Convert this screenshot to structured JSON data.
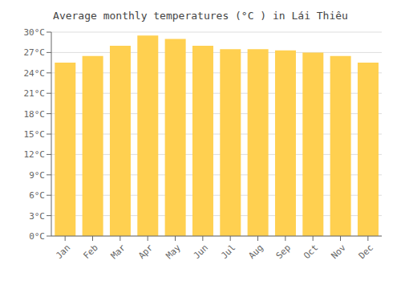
{
  "chart_data": {
    "type": "bar",
    "title": "Average monthly temperatures (°C ) in Lái Thiêu",
    "categories": [
      "Jan",
      "Feb",
      "Mar",
      "Apr",
      "May",
      "Jun",
      "Jul",
      "Aug",
      "Sep",
      "Oct",
      "Nov",
      "Dec"
    ],
    "values": [
      25.5,
      26.5,
      28.0,
      29.5,
      29.0,
      28.0,
      27.5,
      27.5,
      27.3,
      27.0,
      26.5,
      25.5
    ],
    "color": "#FFD050",
    "ylim": [
      0,
      30
    ],
    "yticks": [
      {
        "value": 0,
        "label": "0°C"
      },
      {
        "value": 3,
        "label": "3°C"
      },
      {
        "value": 6,
        "label": "6°C"
      },
      {
        "value": 9,
        "label": "9°C"
      },
      {
        "value": 12,
        "label": "12°C"
      },
      {
        "value": 15,
        "label": "15°C"
      },
      {
        "value": 18,
        "label": "18°C"
      },
      {
        "value": 21,
        "label": "21°C"
      },
      {
        "value": 24,
        "label": "24°C"
      },
      {
        "value": 27,
        "label": "27°C"
      },
      {
        "value": 30,
        "label": "30°C"
      }
    ],
    "grid": true
  }
}
